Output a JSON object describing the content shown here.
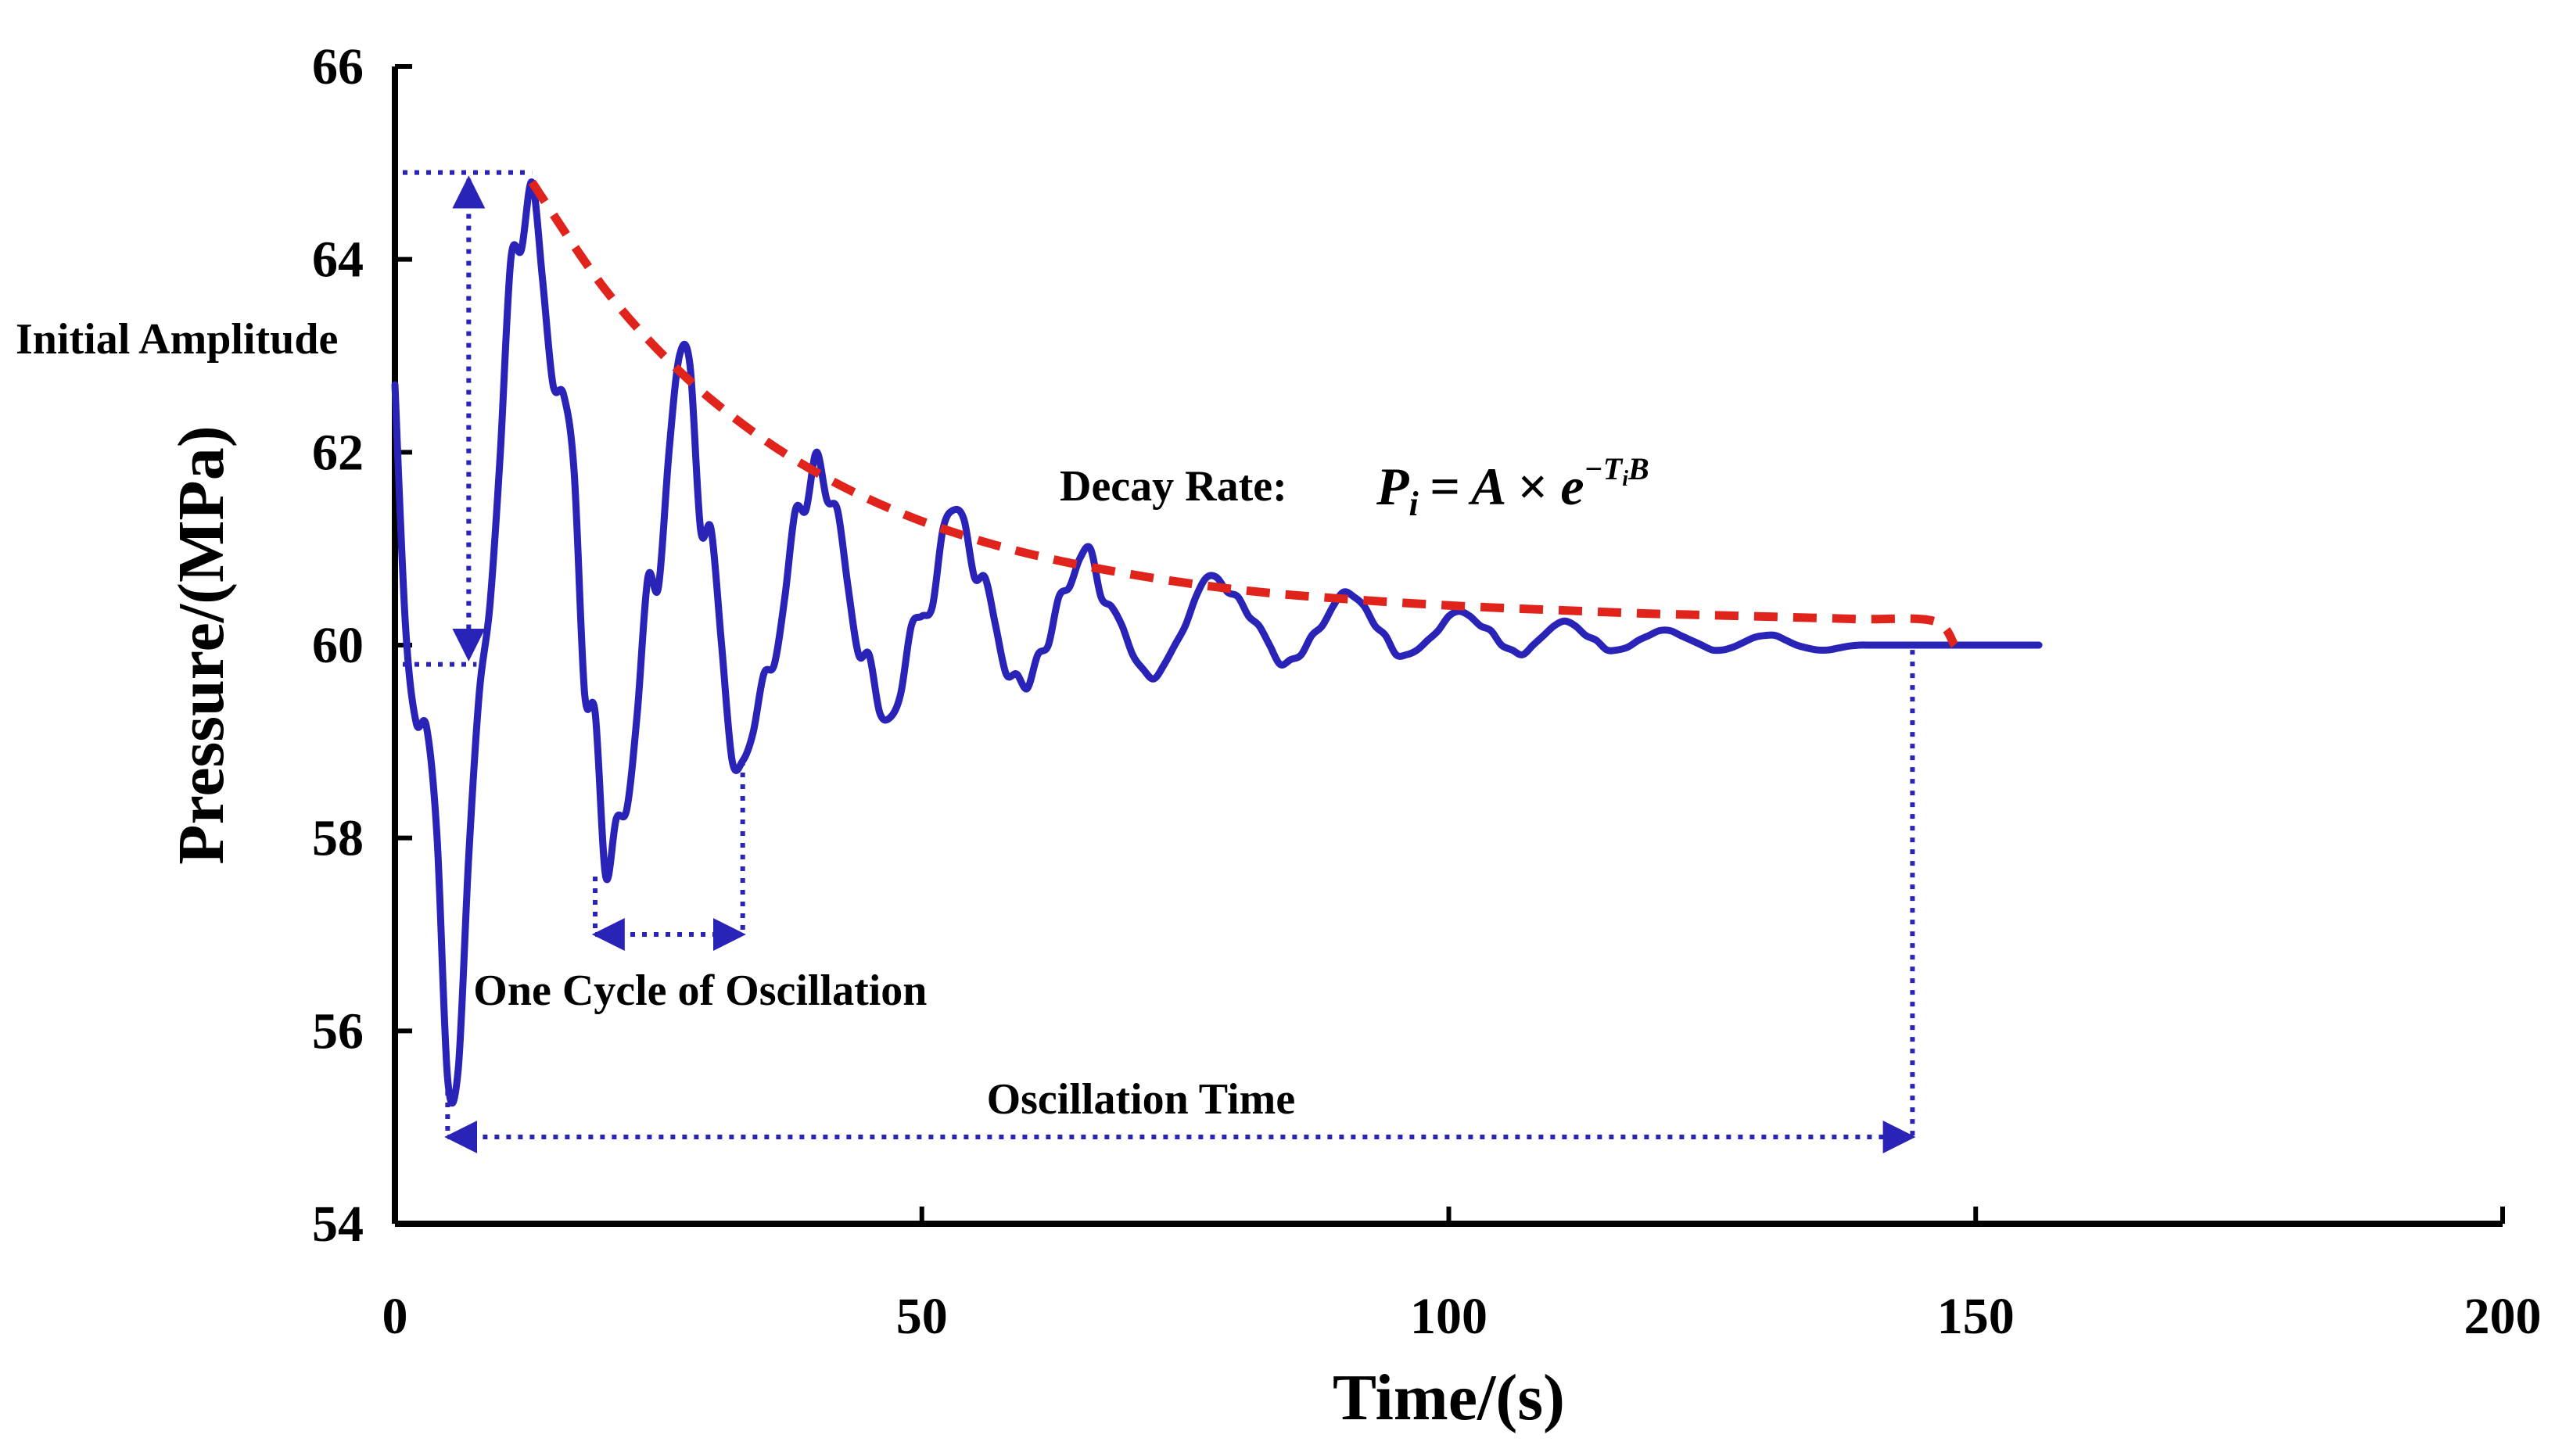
{
  "chart_data": {
    "type": "line",
    "title": "",
    "xlabel": "Time/(s)",
    "ylabel": "Pressure/(MPa)",
    "xlim": [
      0,
      200
    ],
    "ylim": [
      54,
      66
    ],
    "x_ticks": [
      0,
      50,
      100,
      150,
      200
    ],
    "y_ticks": [
      54,
      56,
      58,
      60,
      62,
      64,
      66
    ],
    "x_tick_labels": [
      "0",
      "50",
      "100",
      "150",
      "200"
    ],
    "y_tick_labels": [
      "54",
      "56",
      "58",
      "60",
      "62",
      "64",
      "66"
    ],
    "grid": false,
    "series": [
      {
        "name": "Pressure",
        "color": "#2a23b8",
        "x": [
          0,
          1,
          2,
          3,
          4,
          5,
          6,
          7,
          8,
          9,
          10,
          11,
          12,
          13,
          14,
          15,
          16,
          17,
          18,
          19,
          20,
          21,
          22,
          23,
          24,
          25,
          26,
          27,
          28,
          29,
          30,
          31,
          32,
          33,
          34,
          35,
          36,
          37,
          38,
          39,
          40,
          41,
          42,
          43,
          44,
          45,
          46,
          47,
          48,
          49,
          50,
          51,
          52,
          53,
          54,
          55,
          56,
          57,
          58,
          59,
          60,
          61,
          62,
          63,
          64,
          65,
          66,
          67,
          68,
          69,
          70,
          71,
          72,
          73,
          74,
          75,
          76,
          77,
          78,
          79,
          80,
          81,
          82,
          83,
          84,
          85,
          86,
          87,
          88,
          89,
          90,
          91,
          92,
          93,
          94,
          95,
          96,
          97,
          98,
          99,
          100,
          101,
          102,
          103,
          104,
          105,
          106,
          107,
          108,
          109,
          110,
          111,
          112,
          113,
          114,
          115,
          116,
          117,
          118,
          119,
          120,
          121,
          122,
          123,
          124,
          125,
          126,
          127,
          128,
          129,
          130,
          131,
          132,
          133,
          134,
          135,
          136,
          137,
          138,
          139,
          140,
          141,
          142,
          143,
          144,
          145,
          146,
          147,
          148,
          149,
          150,
          151,
          152,
          153,
          154,
          155,
          156
        ],
        "values": [
          62.7,
          60.2,
          59.2,
          59.15,
          58.0,
          55.5,
          55.6,
          57.8,
          59.5,
          60.4,
          62.0,
          64.0,
          64.1,
          64.8,
          63.8,
          62.7,
          62.6,
          61.8,
          59.5,
          59.3,
          57.6,
          58.2,
          58.3,
          59.3,
          60.7,
          60.6,
          62.0,
          63.0,
          62.9,
          61.2,
          61.2,
          60.0,
          58.8,
          58.8,
          59.1,
          59.7,
          59.8,
          60.5,
          61.4,
          61.4,
          62.0,
          61.5,
          61.4,
          60.6,
          59.9,
          59.9,
          59.3,
          59.25,
          59.5,
          60.2,
          60.3,
          60.4,
          61.2,
          61.4,
          61.3,
          60.7,
          60.7,
          60.2,
          59.7,
          59.7,
          59.55,
          59.9,
          60.0,
          60.5,
          60.6,
          60.9,
          61.0,
          60.5,
          60.4,
          60.2,
          59.9,
          59.75,
          59.65,
          59.8,
          60.0,
          60.2,
          60.5,
          60.7,
          60.7,
          60.55,
          60.5,
          60.3,
          60.2,
          60.0,
          59.8,
          59.85,
          59.9,
          60.1,
          60.2,
          60.4,
          60.55,
          60.5,
          60.4,
          60.2,
          60.1,
          59.9,
          59.9,
          59.95,
          60.05,
          60.15,
          60.3,
          60.35,
          60.3,
          60.2,
          60.15,
          60.0,
          59.95,
          59.9,
          60.0,
          60.1,
          60.2,
          60.25,
          60.2,
          60.1,
          60.05,
          59.95,
          59.95,
          59.98,
          60.05,
          60.1,
          60.15,
          60.15,
          60.1,
          60.05,
          60.0,
          59.95,
          59.95,
          59.98,
          60.03,
          60.08,
          60.1,
          60.1,
          60.05,
          60.0,
          59.97,
          59.95,
          59.95,
          59.97,
          59.99,
          60.0,
          60.0,
          60.0,
          60.0,
          60.0,
          60.0,
          60.0,
          60.0,
          60.0,
          60.0,
          60.0,
          60.0,
          60.0,
          60.0,
          60.0,
          60.0,
          60.0,
          60.0
        ]
      },
      {
        "name": "Decay envelope",
        "color": "#e0241c",
        "style": "dashed",
        "x": [
          13,
          20,
          27,
          34,
          41,
          48,
          55,
          62,
          69,
          76,
          83,
          90,
          97,
          104,
          111,
          118,
          125,
          132,
          139,
          146,
          148
        ],
        "values": [
          64.8,
          63.68,
          62.84,
          62.21,
          61.73,
          61.37,
          61.1,
          60.9,
          60.75,
          60.63,
          60.54,
          60.48,
          60.43,
          60.39,
          60.36,
          60.33,
          60.31,
          60.29,
          60.27,
          60.25,
          60.0
        ]
      }
    ],
    "annotations": {
      "initial_amplitude": {
        "label": "Initial Amplitude",
        "x": 7,
        "y_from": 59.8,
        "y_to": 64.9
      },
      "one_cycle": {
        "label": "One Cycle of Oscillation",
        "x_from": 19,
        "x_to": 33,
        "y": 57.0
      },
      "oscillation_time": {
        "label": "Oscillation Time",
        "x_from": 5,
        "x_to": 144,
        "y": 54.9
      },
      "decay_rate": {
        "label": "Decay Rate",
        "formula": {
          "lhs_base": "P",
          "lhs_sub": "i",
          "rhs": "= A × e",
          "exp_main": "−T",
          "exp_sub": "i",
          "exp_tail": "B"
        }
      }
    }
  }
}
